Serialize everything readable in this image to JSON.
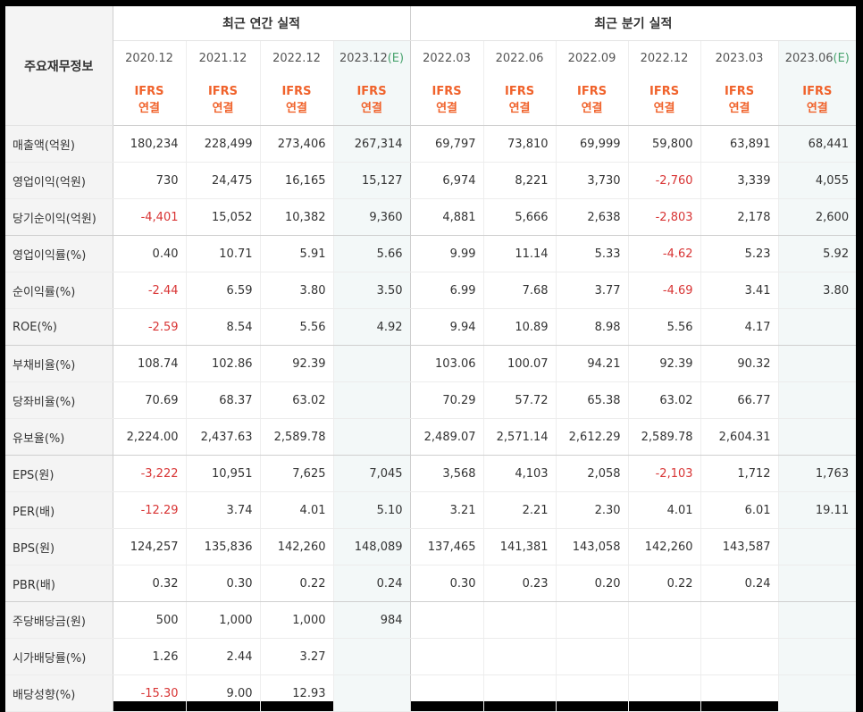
{
  "table": {
    "label_header": "주요재무정보",
    "groups": [
      "최근 연간 실적",
      "최근 분기 실적"
    ],
    "periods": [
      {
        "date": "2020.12",
        "estimate": "",
        "std": "IFRS",
        "type": "연결"
      },
      {
        "date": "2021.12",
        "estimate": "",
        "std": "IFRS",
        "type": "연결"
      },
      {
        "date": "2022.12",
        "estimate": "",
        "std": "IFRS",
        "type": "연결"
      },
      {
        "date": "2023.12",
        "estimate": "(E)",
        "std": "IFRS",
        "type": "연결"
      },
      {
        "date": "2022.03",
        "estimate": "",
        "std": "IFRS",
        "type": "연결"
      },
      {
        "date": "2022.06",
        "estimate": "",
        "std": "IFRS",
        "type": "연결"
      },
      {
        "date": "2022.09",
        "estimate": "",
        "std": "IFRS",
        "type": "연결"
      },
      {
        "date": "2022.12",
        "estimate": "",
        "std": "IFRS",
        "type": "연결"
      },
      {
        "date": "2023.03",
        "estimate": "",
        "std": "IFRS",
        "type": "연결"
      },
      {
        "date": "2023.06",
        "estimate": "(E)",
        "std": "IFRS",
        "type": "연결"
      }
    ],
    "rows": [
      {
        "label": "매출액(억원)",
        "values": [
          "180,234",
          "228,499",
          "273,406",
          "267,314",
          "69,797",
          "73,810",
          "69,999",
          "59,800",
          "63,891",
          "68,441"
        ]
      },
      {
        "label": "영업이익(억원)",
        "values": [
          "730",
          "24,475",
          "16,165",
          "15,127",
          "6,974",
          "8,221",
          "3,730",
          "-2,760",
          "3,339",
          "4,055"
        ]
      },
      {
        "label": "당기순이익(억원)",
        "values": [
          "-4,401",
          "15,052",
          "10,382",
          "9,360",
          "4,881",
          "5,666",
          "2,638",
          "-2,803",
          "2,178",
          "2,600"
        ]
      },
      {
        "label": "영업이익률(%)",
        "values": [
          "0.40",
          "10.71",
          "5.91",
          "5.66",
          "9.99",
          "11.14",
          "5.33",
          "-4.62",
          "5.23",
          "5.92"
        ]
      },
      {
        "label": "순이익률(%)",
        "values": [
          "-2.44",
          "6.59",
          "3.80",
          "3.50",
          "6.99",
          "7.68",
          "3.77",
          "-4.69",
          "3.41",
          "3.80"
        ]
      },
      {
        "label": "ROE(%)",
        "values": [
          "-2.59",
          "8.54",
          "5.56",
          "4.92",
          "9.94",
          "10.89",
          "8.98",
          "5.56",
          "4.17",
          ""
        ]
      },
      {
        "label": "부채비율(%)",
        "values": [
          "108.74",
          "102.86",
          "92.39",
          "",
          "103.06",
          "100.07",
          "94.21",
          "92.39",
          "90.32",
          ""
        ]
      },
      {
        "label": "당좌비율(%)",
        "values": [
          "70.69",
          "68.37",
          "63.02",
          "",
          "70.29",
          "57.72",
          "65.38",
          "63.02",
          "66.77",
          ""
        ]
      },
      {
        "label": "유보율(%)",
        "values": [
          "2,224.00",
          "2,437.63",
          "2,589.78",
          "",
          "2,489.07",
          "2,571.14",
          "2,612.29",
          "2,589.78",
          "2,604.31",
          ""
        ]
      },
      {
        "label": "EPS(원)",
        "values": [
          "-3,222",
          "10,951",
          "7,625",
          "7,045",
          "3,568",
          "4,103",
          "2,058",
          "-2,103",
          "1,712",
          "1,763"
        ]
      },
      {
        "label": "PER(배)",
        "values": [
          "-12.29",
          "3.74",
          "4.01",
          "5.10",
          "3.21",
          "2.21",
          "2.30",
          "4.01",
          "6.01",
          "19.11"
        ]
      },
      {
        "label": "BPS(원)",
        "values": [
          "124,257",
          "135,836",
          "142,260",
          "148,089",
          "137,465",
          "141,381",
          "143,058",
          "142,260",
          "143,587",
          ""
        ]
      },
      {
        "label": "PBR(배)",
        "values": [
          "0.32",
          "0.30",
          "0.22",
          "0.24",
          "0.30",
          "0.23",
          "0.20",
          "0.22",
          "0.24",
          ""
        ]
      },
      {
        "label": "주당배당금(원)",
        "values": [
          "500",
          "1,000",
          "1,000",
          "984",
          "",
          "",
          "",
          "",
          "",
          ""
        ]
      },
      {
        "label": "시가배당률(%)",
        "values": [
          "1.26",
          "2.44",
          "3.27",
          "",
          "",
          "",
          "",
          "",
          "",
          ""
        ]
      },
      {
        "label": "배당성향(%)",
        "values": [
          "-15.30",
          "9.00",
          "12.93",
          "",
          "",
          "",
          "",
          "",
          "",
          ""
        ]
      }
    ],
    "colors": {
      "ifrs": "#f0622b",
      "estimate_mark": "#4aa46f",
      "negative": "#d83434",
      "estimate_bg": "#f3f8f8"
    }
  }
}
